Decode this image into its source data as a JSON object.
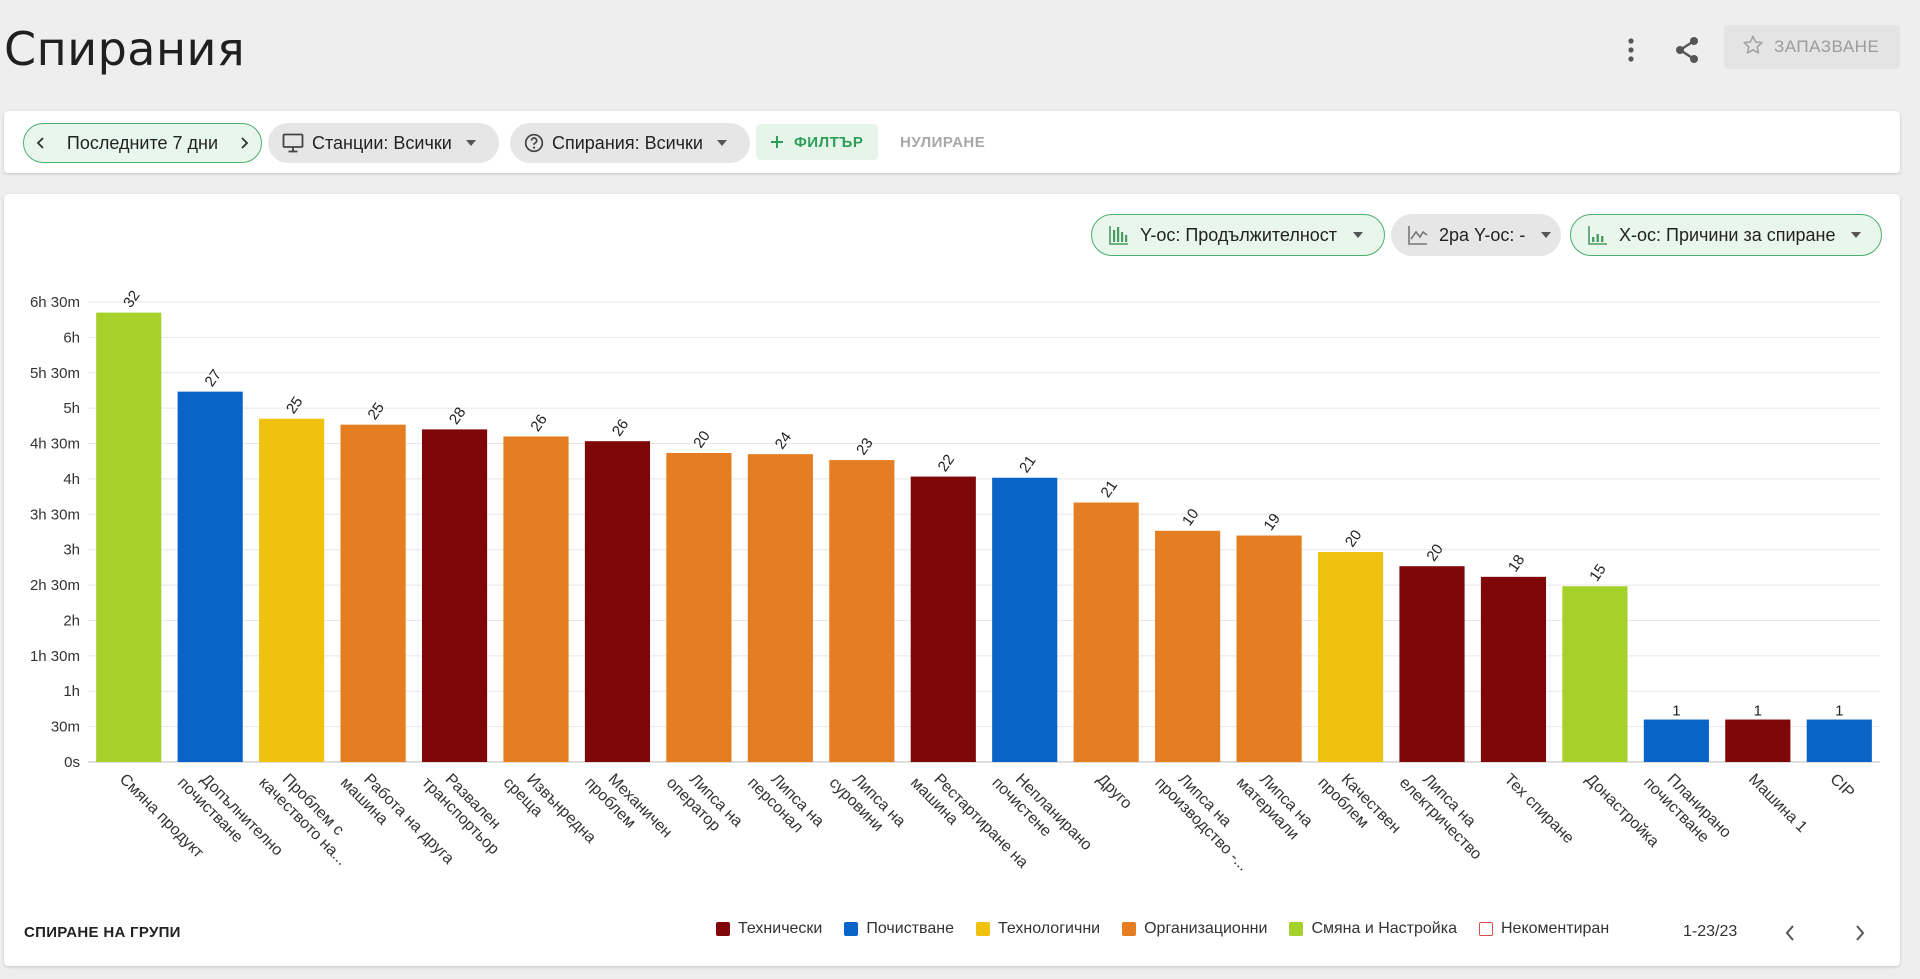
{
  "header": {
    "title": "Спирания",
    "save_label": "ЗАПАЗВАНЕ",
    "icons": [
      "more-vert-icon",
      "share-icon",
      "star-icon"
    ]
  },
  "filters": {
    "period": "Последните 7 дни",
    "stations": "Станции: Всички",
    "stoppages": "Спирания: Всички",
    "filter_label": "ФИЛТЪР",
    "reset_label": "НУЛИРАНЕ"
  },
  "chart_controls": {
    "y_axis": "Y-ос: Продължителност",
    "y2_axis": "2ра Y-ос: -",
    "x_axis": "X-ос: Причини за спиране"
  },
  "colors": {
    "technical": "#7f0707",
    "cleaning": "#0a64c8",
    "technological": "#f0c10e",
    "organizational": "#e57d22",
    "changeover": "#a6d12a",
    "accent_green": "#2e9e57"
  },
  "chart_data": {
    "type": "bar",
    "title": "",
    "xlabel": "",
    "ylabel": "",
    "ylim": [
      0,
      390
    ],
    "y_unit": "minutes",
    "y_ticks": [
      {
        "value": 0,
        "label": "0s"
      },
      {
        "value": 30,
        "label": "30m"
      },
      {
        "value": 60,
        "label": "1h"
      },
      {
        "value": 90,
        "label": "1h 30m"
      },
      {
        "value": 120,
        "label": "2h"
      },
      {
        "value": 150,
        "label": "2h 30m"
      },
      {
        "value": 180,
        "label": "3h"
      },
      {
        "value": 210,
        "label": "3h 30m"
      },
      {
        "value": 240,
        "label": "4h"
      },
      {
        "value": 270,
        "label": "4h 30m"
      },
      {
        "value": 300,
        "label": "5h"
      },
      {
        "value": 330,
        "label": "5h 30m"
      },
      {
        "value": 360,
        "label": "6h"
      },
      {
        "value": 390,
        "label": "6h 30m"
      }
    ],
    "grid": true,
    "categories": [
      "Смяна продукт",
      "Допълнително почистване",
      "Проблем с качеството на...",
      "Работа на друга машина",
      "Развален транспортьор",
      "Извънредна среща",
      "Механичен проблем",
      "Липса на оператор",
      "Липса на персонал",
      "Липса на суровини",
      "Рестартиране на машина",
      "Непланирано почистене",
      "Друго",
      "Липса на производство -...",
      "Липса на материали",
      "Качествен проблем",
      "Липса на електричество",
      "Тех спиране",
      "Донастройка",
      "Планирано почистване",
      "Машина 1",
      "CIP"
    ],
    "category_lines": [
      [
        "Смяна продукт"
      ],
      [
        "Допълнително",
        "почистване"
      ],
      [
        "Проблем с",
        "качеството на..."
      ],
      [
        "Работа на друга",
        "машина"
      ],
      [
        "Развален",
        "транспортьор"
      ],
      [
        "Извънредна",
        "среща"
      ],
      [
        "Механичен",
        "проблем"
      ],
      [
        "Липса на",
        "оператор"
      ],
      [
        "Липса на",
        "персонал"
      ],
      [
        "Липса на",
        "суровини"
      ],
      [
        "Рестартиране на",
        "машина"
      ],
      [
        "Непланирано",
        "почистене"
      ],
      [
        "Друго"
      ],
      [
        "Липса на",
        "производство -..."
      ],
      [
        "Липса на",
        "материали"
      ],
      [
        "Качествен",
        "проблем"
      ],
      [
        "Липса на",
        "електричество"
      ],
      [
        "Тех спиране"
      ],
      [
        "Донастройка"
      ],
      [
        "Планирано",
        "почистване"
      ],
      [
        "Машина 1"
      ],
      [
        "CIP"
      ]
    ],
    "values": [
      381,
      314,
      291,
      286,
      282,
      276,
      272,
      262,
      261,
      256,
      242,
      241,
      220,
      196,
      192,
      178,
      166,
      157,
      149,
      36,
      36,
      36
    ],
    "counts": [
      32,
      27,
      25,
      25,
      28,
      26,
      26,
      20,
      24,
      23,
      22,
      21,
      21,
      10,
      19,
      20,
      20,
      18,
      15,
      1,
      1,
      1
    ],
    "groups": [
      "changeover",
      "cleaning",
      "technological",
      "organizational",
      "technical",
      "organizational",
      "technical",
      "organizational",
      "organizational",
      "organizational",
      "technical",
      "cleaning",
      "organizational",
      "organizational",
      "organizational",
      "technological",
      "technical",
      "technical",
      "changeover",
      "cleaning",
      "technical",
      "cleaning"
    ],
    "legend_placement": "bottom"
  },
  "footer": {
    "title": "СПИРАНЕ НА ГРУПИ",
    "legend": [
      {
        "label": "Технически",
        "group": "technical"
      },
      {
        "label": "Почистване",
        "group": "cleaning"
      },
      {
        "label": "Технологични",
        "group": "technological"
      },
      {
        "label": "Организационни",
        "group": "organizational"
      },
      {
        "label": "Смяна и Настройка",
        "group": "changeover"
      },
      {
        "label": "Некоментиран",
        "group": "uncommented"
      }
    ],
    "pager": "1-23/23"
  }
}
